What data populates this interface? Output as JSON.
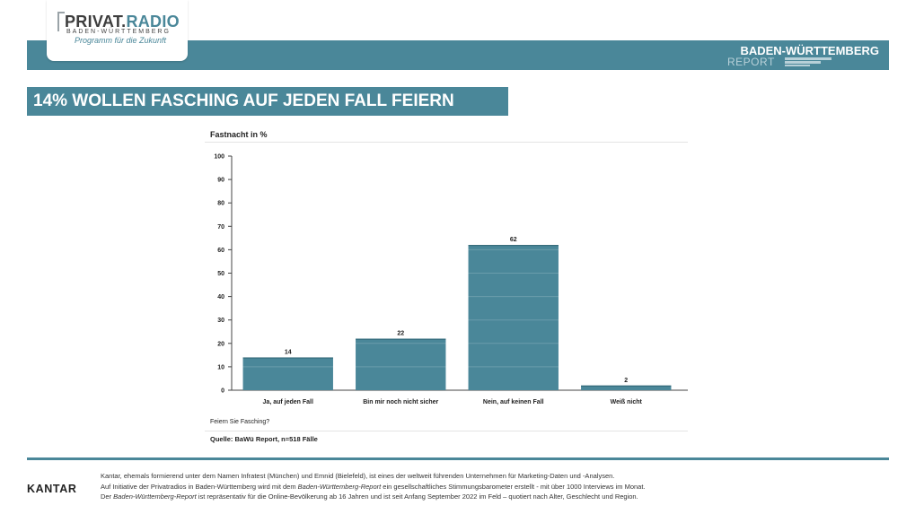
{
  "logo": {
    "brand_part1": "PRIVAT.",
    "brand_part2": "RADIO",
    "region": "BADEN-WÜRTTEMBERG",
    "tagline": "Programm für die Zukunft"
  },
  "report_logo": {
    "title": "BADEN-WÜRTTEMBERG",
    "subtitle": "REPORT"
  },
  "headline": "14% WOLLEN FASCHING AUF JEDEN FALL FEIERN",
  "chart_question": "Feiern Sie Fasching?",
  "source": "Quelle: BaWü Report, n=518 Fälle",
  "chart_data": {
    "type": "bar",
    "title": "Fastnacht in %",
    "categories": [
      "Ja, auf jeden Fall",
      "Bin mir noch nicht sicher",
      "Nein, auf keinen Fall",
      "Weiß nicht"
    ],
    "values": [
      14,
      22,
      62,
      2
    ],
    "ylim": [
      0,
      100
    ],
    "yticks": [
      0,
      10,
      20,
      30,
      40,
      50,
      60,
      70,
      80,
      90,
      100
    ],
    "xlabel": "Feiern Sie Fasching?",
    "ylabel": "",
    "grid": false,
    "bar_color": "#4a8799"
  },
  "footer": {
    "brand": "KANTAR",
    "line1": "Kantar, ehemals formierend unter dem Namen Infratest (München) und Emnid  (Bielefeld), ist eines der weltweit führenden Unternehmen für Marketing-Daten und -Analysen.",
    "line2_a": "Auf Initiative der Privatradios in  Baden-Württemberg wird mit dem ",
    "line2_b": "Baden-Württemberg-Report",
    "line2_c": " ein gesellschaftliches Stimmungsbarometer erstellt - mit über 1000 Interviews im Monat.",
    "line3_a": "Der ",
    "line3_b": "Baden-Württemberg-Report",
    "line3_c": " ist repräsentativ für die Online-Bevölkerung ab 16 Jahren und ist seit Anfang September 2022 im Feld – quotiert nach Alter, Geschlecht und Region."
  },
  "colors": {
    "accent": "#4a8799",
    "text": "#222222"
  }
}
